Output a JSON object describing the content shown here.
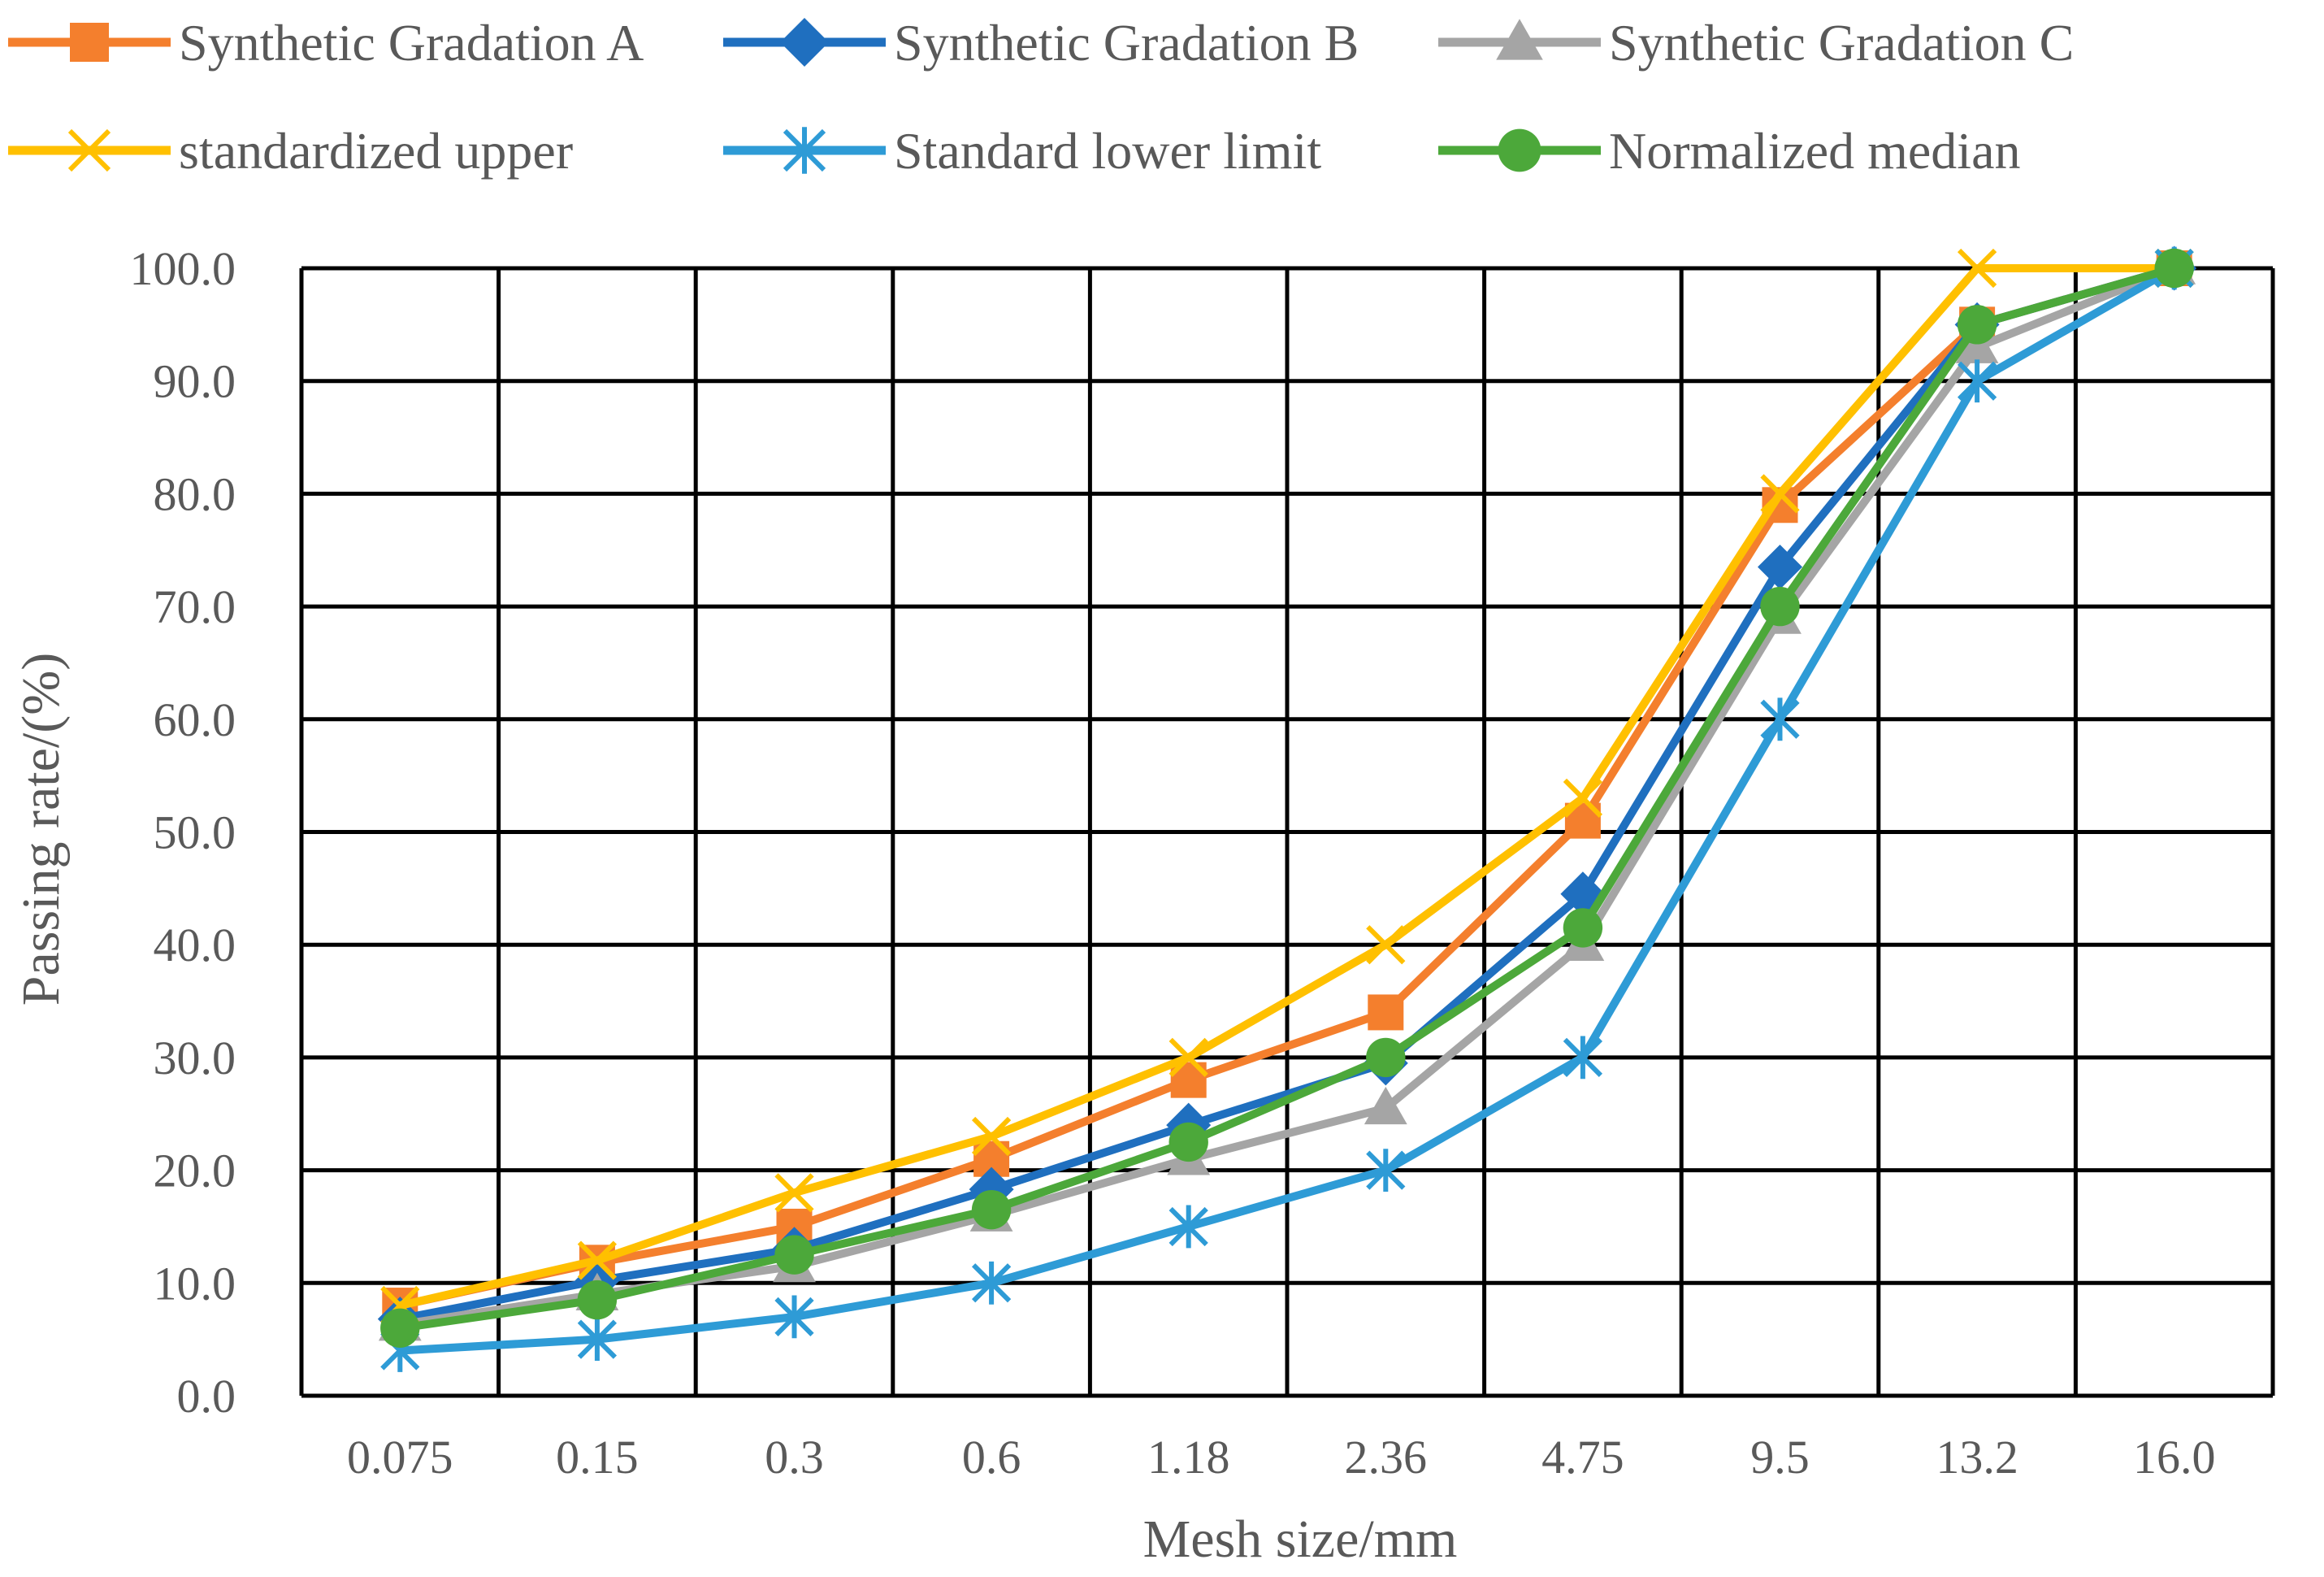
{
  "chart_data": {
    "type": "line",
    "title": "",
    "xlabel": "Mesh size/mm",
    "ylabel": "Passing rate/(%)",
    "categories": [
      "0.075",
      "0.15",
      "0.3",
      "0.6",
      "1.18",
      "2.36",
      "4.75",
      "9.5",
      "13.2",
      "16.0"
    ],
    "y_ticks": [
      "0.0",
      "10.0",
      "20.0",
      "30.0",
      "40.0",
      "50.0",
      "60.0",
      "70.0",
      "80.0",
      "90.0",
      "100.0"
    ],
    "ylim": [
      0,
      100
    ],
    "grid": true,
    "legend_position": "top",
    "series": [
      {
        "name": "Synthetic Gradation A",
        "color": "#F47F2D",
        "marker": "square",
        "values": [
          8.0,
          11.8,
          15.0,
          21.0,
          28.0,
          34.0,
          51.0,
          79.0,
          95.0,
          100.0
        ]
      },
      {
        "name": "Synthetic Gradation B",
        "color": "#1F6FBF",
        "marker": "diamond",
        "values": [
          6.8,
          10.2,
          13.0,
          18.3,
          24.0,
          29.5,
          44.5,
          73.5,
          95.0,
          100.0
        ]
      },
      {
        "name": "Synthetic Gradation C",
        "color": "#A5A5A5",
        "marker": "triangle",
        "values": [
          6.3,
          9.0,
          11.5,
          16.0,
          21.0,
          25.5,
          40.0,
          69.0,
          93.0,
          100.0
        ]
      },
      {
        "name": "standardized upper",
        "color": "#FFC000",
        "marker": "x",
        "values": [
          8.0,
          12.0,
          18.0,
          23.0,
          30.0,
          40.0,
          53.0,
          80.0,
          100.0,
          100.0
        ]
      },
      {
        "name": "Standard lower limit",
        "color": "#2E9BD6",
        "marker": "asterisk",
        "values": [
          4.0,
          5.0,
          7.0,
          10.0,
          15.0,
          20.0,
          30.0,
          60.0,
          90.0,
          100.0
        ]
      },
      {
        "name": "Normalized median",
        "color": "#4CA83A",
        "marker": "circle",
        "values": [
          6.0,
          8.5,
          12.5,
          16.5,
          22.5,
          30.0,
          41.5,
          70.0,
          95.0,
          100.0
        ]
      }
    ]
  }
}
